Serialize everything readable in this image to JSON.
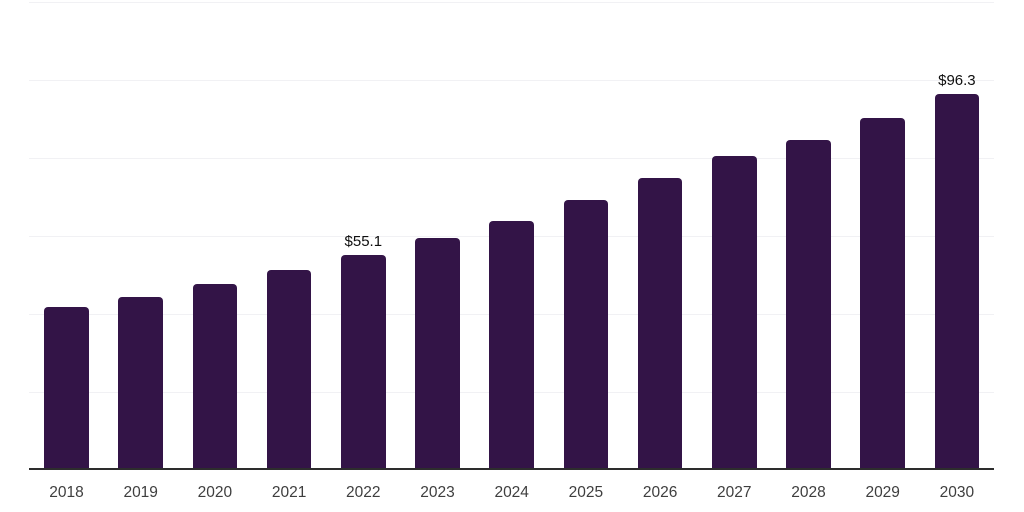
{
  "chart_data": {
    "type": "bar",
    "title": "",
    "xlabel": "",
    "ylabel": "",
    "categories": [
      "2018",
      "2019",
      "2020",
      "2021",
      "2022",
      "2023",
      "2024",
      "2025",
      "2026",
      "2027",
      "2028",
      "2029",
      "2030"
    ],
    "values": [
      41.8,
      44.4,
      47.7,
      51.3,
      55.1,
      59.4,
      63.9,
      69.2,
      74.8,
      80.5,
      84.6,
      90.3,
      96.3
    ],
    "data_labels": [
      {
        "index": 4,
        "text": "$55.1"
      },
      {
        "index": 12,
        "text": "$96.3"
      }
    ],
    "ylim": [
      0,
      120
    ],
    "grid_step": 20,
    "grid": true,
    "legend": false,
    "y_axis_labels_visible": false,
    "colors": {
      "bar": "#331447",
      "gridline": "#f1f1f4",
      "axis_line": "#2d2d2d",
      "value_label": "#0f0f0f",
      "tick_label": "#3e3e3e",
      "background": "#ffffff"
    }
  }
}
